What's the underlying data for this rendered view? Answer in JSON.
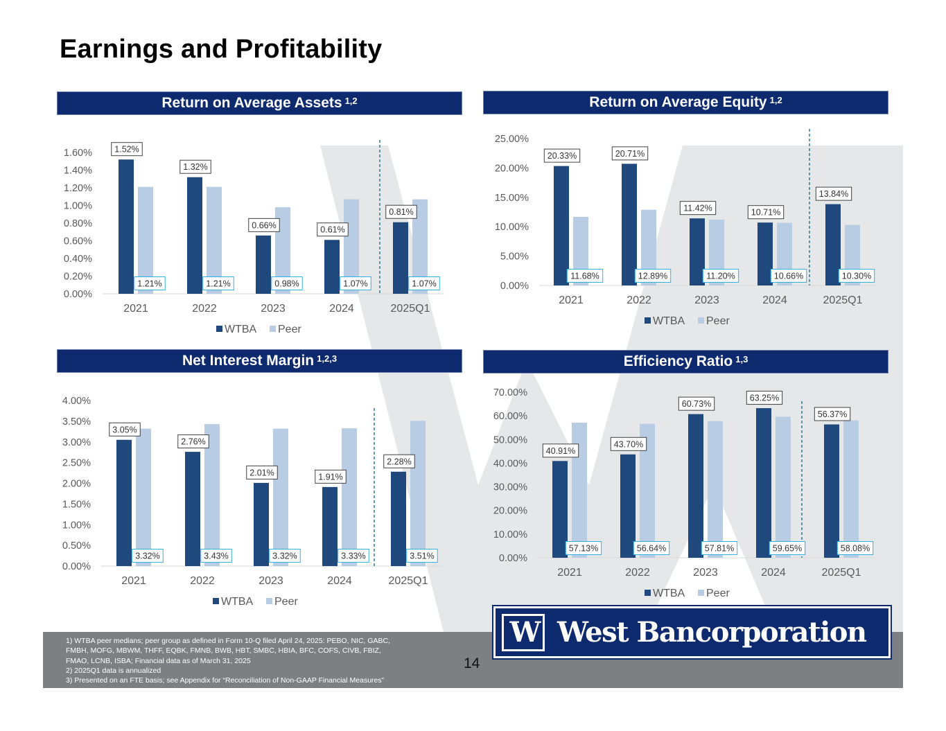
{
  "title": "Earnings and Profitability",
  "page_number": "14",
  "logo": {
    "mark": "W",
    "name": "West Bancorporation"
  },
  "footnotes": [
    "1) WTBA peer medians; peer group as defined in Form 10-Q filed April 24, 2025:  PEBO, NIC, GABC,",
    "FMBH, MOFG, MBWM, THFF, EQBK, FMNB, BWB, HBT, SMBC, HBIA, BFC, COFS, CIVB, FBIZ,",
    "FMAO, LCNB, ISBA; Financial data as of March 31, 2025",
    "2)   2025Q1 data is annualized",
    "3)   Presented on an FTE basis; see Appendix for “Reconciliation of Non-GAAP Financial Measures”"
  ],
  "colors": {
    "banner": "#0d2a6e",
    "wtba": "#1f497d",
    "peer": "#b8cce4",
    "dashed": "#2e7d8c",
    "peer_label_border": "#31b0e6"
  },
  "chart_data": [
    {
      "id": "roaa",
      "type": "bar",
      "banner": "Return on Average Assets",
      "sup": "1,2",
      "categories": [
        "2021",
        "2022",
        "2023",
        "2024",
        "2025Q1"
      ],
      "series": [
        {
          "name": "WTBA",
          "values": [
            1.52,
            1.32,
            0.66,
            0.61,
            0.81
          ],
          "labels": [
            "1.52%",
            "1.32%",
            "0.66%",
            "0.61%",
            "0.81%"
          ]
        },
        {
          "name": "Peer",
          "values": [
            1.21,
            1.21,
            0.98,
            1.07,
            1.07
          ],
          "labels": [
            "1.21%",
            "1.21%",
            "0.98%",
            "1.07%",
            "1.07%"
          ]
        }
      ],
      "ylim": [
        0,
        1.6
      ],
      "ticks": [
        "0.00%",
        "0.20%",
        "0.40%",
        "0.60%",
        "0.80%",
        "1.00%",
        "1.20%",
        "1.40%",
        "1.60%"
      ],
      "legend": "bottom"
    },
    {
      "id": "roae",
      "type": "bar",
      "banner": "Return on Average Equity",
      "sup": "1,2",
      "categories": [
        "2021",
        "2022",
        "2023",
        "2024",
        "2025Q1"
      ],
      "series": [
        {
          "name": "WTBA",
          "values": [
            20.33,
            20.71,
            11.42,
            10.71,
            13.84
          ],
          "labels": [
            "20.33%",
            "20.71%",
            "11.42%",
            "10.71%",
            "13.84%"
          ]
        },
        {
          "name": "Peer",
          "values": [
            11.68,
            12.89,
            11.2,
            10.66,
            10.3
          ],
          "labels": [
            "11.68%",
            "12.89%",
            "11.20%",
            "10.66%",
            "10.30%"
          ]
        }
      ],
      "ylim": [
        0,
        25
      ],
      "ticks": [
        "0.00%",
        "5.00%",
        "10.00%",
        "15.00%",
        "20.00%",
        "25.00%"
      ],
      "legend": "bottom"
    },
    {
      "id": "nim",
      "type": "bar",
      "banner": "Net Interest Margin",
      "sup": "1,2,3",
      "categories": [
        "2021",
        "2022",
        "2023",
        "2024",
        "2025Q1"
      ],
      "series": [
        {
          "name": "WTBA",
          "values": [
            3.05,
            2.76,
            2.01,
            1.91,
            2.28
          ],
          "labels": [
            "3.05%",
            "2.76%",
            "2.01%",
            "1.91%",
            "2.28%"
          ]
        },
        {
          "name": "Peer",
          "values": [
            3.32,
            3.43,
            3.32,
            3.33,
            3.51
          ],
          "labels": [
            "3.32%",
            "3.43%",
            "3.32%",
            "3.33%",
            "3.51%"
          ]
        }
      ],
      "ylim": [
        0,
        4
      ],
      "ticks": [
        "0.00%",
        "0.50%",
        "1.00%",
        "1.50%",
        "2.00%",
        "2.50%",
        "3.00%",
        "3.50%",
        "4.00%"
      ],
      "legend": "bottom"
    },
    {
      "id": "eff",
      "type": "bar",
      "banner": "Efficiency Ratio",
      "sup": "1,3",
      "categories": [
        "2021",
        "2022",
        "2023",
        "2024",
        "2025Q1"
      ],
      "series": [
        {
          "name": "WTBA",
          "values": [
            40.91,
            43.7,
            60.73,
            63.25,
            56.37
          ],
          "labels": [
            "40.91%",
            "43.70%",
            "60.73%",
            "63.25%",
            "56.37%"
          ]
        },
        {
          "name": "Peer",
          "values": [
            57.13,
            56.64,
            57.81,
            59.65,
            58.08
          ],
          "labels": [
            "57.13%",
            "56.64%",
            "57.81%",
            "59.65%",
            "58.08%"
          ]
        }
      ],
      "ylim": [
        0,
        70
      ],
      "ticks": [
        "0.00%",
        "10.00%",
        "20.00%",
        "30.00%",
        "40.00%",
        "50.00%",
        "60.00%",
        "70.00%"
      ],
      "legend": "bottom"
    }
  ]
}
